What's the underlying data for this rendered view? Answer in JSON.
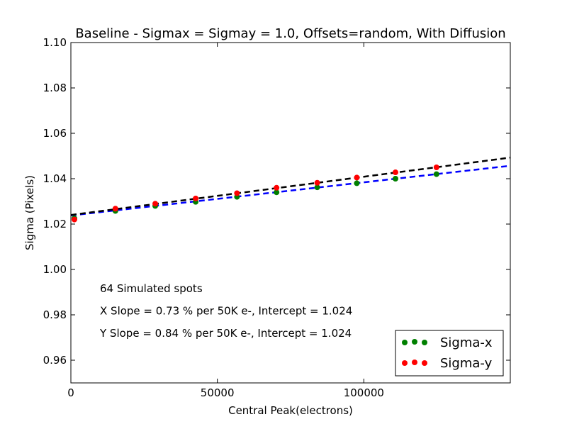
{
  "chart_data": {
    "type": "scatter",
    "title": "Baseline - Sigmax = Sigmay = 1.0, Offsets=random, With Diffusion",
    "xlabel": "Central Peak(electrons)",
    "ylabel": "Sigma (Pixels)",
    "xlim": [
      0,
      150000
    ],
    "ylim": [
      0.95,
      1.1
    ],
    "x_ticks": [
      0,
      50000,
      100000
    ],
    "x_tick_labels": [
      "0",
      "50000",
      "100000"
    ],
    "y_ticks": [
      0.96,
      0.98,
      1.0,
      1.02,
      1.04,
      1.06,
      1.08,
      1.1
    ],
    "y_tick_labels": [
      "0.96",
      "0.98",
      "1.00",
      "1.02",
      "1.04",
      "1.06",
      "1.08",
      "1.10"
    ],
    "grid": false,
    "legend_position": "bottom-right",
    "series": [
      {
        "name": "Sigma-x",
        "color": "#008000",
        "x": [
          1200,
          15200,
          28800,
          42600,
          56700,
          70200,
          84100,
          97600,
          110800,
          124800
        ],
        "y": [
          1.0225,
          1.0258,
          1.028,
          1.0298,
          1.032,
          1.034,
          1.0362,
          1.038,
          1.04,
          1.042
        ]
      },
      {
        "name": "Sigma-y",
        "color": "#ff0000",
        "x": [
          1200,
          15200,
          28800,
          42600,
          56700,
          70200,
          84100,
          97600,
          110800,
          124800
        ],
        "y": [
          1.022,
          1.0268,
          1.029,
          1.0313,
          1.0336,
          1.036,
          1.0382,
          1.0405,
          1.0428,
          1.045
        ]
      }
    ],
    "fit_lines": [
      {
        "color": "#0000ff",
        "x": [
          0,
          150000
        ],
        "y": [
          1.0238,
          1.0457
        ]
      },
      {
        "color": "#000000",
        "x": [
          0,
          150000
        ],
        "y": [
          1.024,
          1.0493
        ]
      }
    ],
    "annotations": [
      "64 Simulated spots",
      "X Slope = 0.73 % per 50K e-, Intercept = 1.024",
      "Y Slope = 0.84 % per 50K e-, Intercept = 1.024"
    ]
  }
}
